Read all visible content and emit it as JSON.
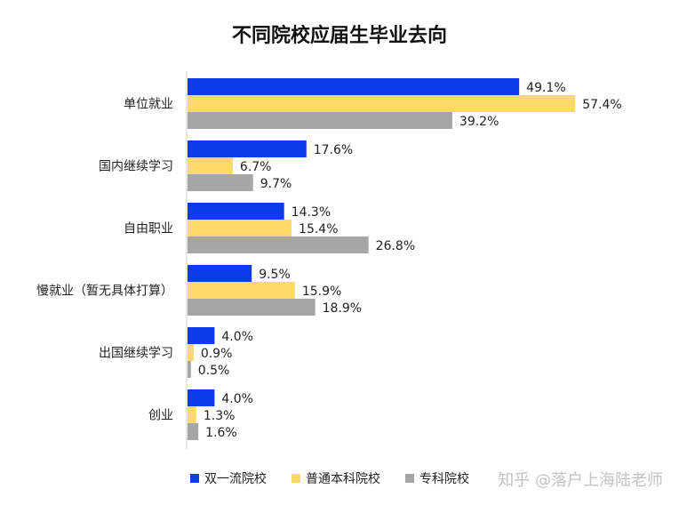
{
  "chart_data": {
    "type": "bar",
    "orientation": "horizontal",
    "title": "不同院校应届生毕业去向",
    "categories": [
      "单位就业",
      "国内继续学习",
      "自由职业",
      "慢就业（暂无具体打算）",
      "出国继续学习",
      "创业"
    ],
    "series": [
      {
        "name": "双一流院校",
        "color": "#0d3be8",
        "values": [
          49.1,
          17.6,
          14.3,
          9.5,
          4.0,
          4.0
        ],
        "labels": [
          "49.1%",
          "17.6%",
          "14.3%",
          "9.5%",
          "4.0%",
          "4.0%"
        ]
      },
      {
        "name": "普通本科院校",
        "color": "#fdd96a",
        "values": [
          57.4,
          6.7,
          15.4,
          15.9,
          0.9,
          1.3
        ],
        "labels": [
          "57.4%",
          "6.7%",
          "15.4%",
          "15.9%",
          "0.9%",
          "1.3%"
        ]
      },
      {
        "name": "专科院校",
        "color": "#a6a6a6",
        "values": [
          39.2,
          9.7,
          26.8,
          18.9,
          0.5,
          1.6
        ],
        "labels": [
          "39.2%",
          "9.7%",
          "26.8%",
          "18.9%",
          "0.5%",
          "1.6%"
        ]
      }
    ],
    "xlim": [
      0,
      60
    ],
    "grid": false,
    "legend_position": "bottom"
  },
  "watermark": "知乎 @落户上海陆老师"
}
